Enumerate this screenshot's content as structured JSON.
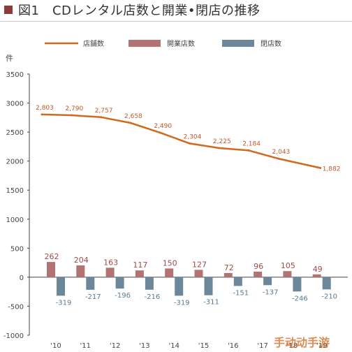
{
  "header": {
    "title": "図1　CDレンタル店数と開業•閉店の推移"
  },
  "colors": {
    "line": "#d2691e",
    "open_bar": "#b47373",
    "close_bar": "#6b8799",
    "title_square": "#8c3b3b"
  },
  "watermark": "手动动手游",
  "chart_data": {
    "type": "bar",
    "title": "CDレンタル店数と開業•閉店の推移",
    "ylabel": "件",
    "ylim": [
      -1000,
      3500
    ],
    "yticks": [
      -1000,
      -500,
      0,
      500,
      1000,
      1500,
      2000,
      2500,
      3000,
      3500
    ],
    "ytick_labels": [
      "-1000",
      "-500",
      "0",
      "500",
      "1000",
      "1500",
      "2000",
      "2500",
      "3000",
      "3500"
    ],
    "categories": [
      "'10",
      "'11",
      "'12",
      "'13",
      "'14",
      "'15",
      "'16",
      "'17",
      "'18",
      "'19"
    ],
    "legend": {
      "position": "top"
    },
    "grid": false,
    "series": [
      {
        "name": "店舗数",
        "type": "line",
        "values": [
          2803,
          2790,
          2757,
          2658,
          2490,
          2304,
          2225,
          2184,
          2043,
          1882
        ],
        "labels": [
          "2,803",
          "2,790",
          "2,757",
          "2,658",
          "2,490",
          "2,304",
          "2,225",
          "2,184",
          "2,043",
          "1,882"
        ]
      },
      {
        "name": "開業店数",
        "type": "bar",
        "values": [
          262,
          204,
          163,
          117,
          150,
          127,
          72,
          96,
          105,
          49
        ],
        "labels": [
          "262",
          "204",
          "163",
          "117",
          "150",
          "127",
          "72",
          "96",
          "105",
          "49"
        ]
      },
      {
        "name": "閉店数",
        "type": "bar",
        "values": [
          -319,
          -217,
          -196,
          -216,
          -319,
          -311,
          -151,
          -137,
          -246,
          -210
        ],
        "labels": [
          "-319",
          "-217",
          "-196",
          "-216",
          "-319",
          "-311",
          "-151",
          "-137",
          "-246",
          "-210"
        ]
      }
    ]
  }
}
